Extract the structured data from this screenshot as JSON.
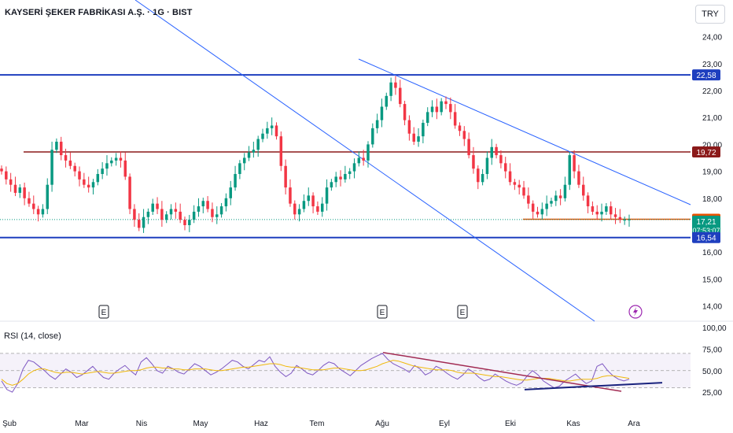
{
  "header": {
    "title": "KAYSERİ ŞEKER FABRİKASI A.Ş. · 1G · BIST",
    "currency": "TRY"
  },
  "rsi": {
    "label": "RSI (14, close)"
  },
  "colors": {
    "up": "#089981",
    "down": "#f23645",
    "blue_line": "#1e3fbf",
    "maroon_line": "#8b1a1a",
    "orange_line": "#e65100",
    "trend_line": "#2962ff",
    "rsi_line": "#7e57c2",
    "rsi_ma": "#f0b90b",
    "rsi_band": "#ede7f6"
  },
  "chart_data": [
    {
      "type": "candlestick",
      "title": "KAYSERİ ŞEKER FABRİKASI A.Ş. · 1G · BIST",
      "x": [
        "Şub",
        "Mar",
        "Nis",
        "May",
        "Haz",
        "Tem",
        "Ağu",
        "Eyl",
        "Eki",
        "Kas",
        "Ara"
      ],
      "y_ticks": [
        "24,00",
        "23,00",
        "22,00",
        "21,00",
        "20,00",
        "19,00",
        "18,00",
        "16,00",
        "15,00",
        "14,00"
      ],
      "ylim": [
        13.4,
        24.6
      ],
      "closes": [
        19.0,
        18.7,
        18.5,
        18.2,
        18.4,
        18.0,
        17.8,
        17.6,
        17.4,
        17.6,
        18.5,
        19.8,
        20.1,
        19.6,
        19.4,
        19.2,
        19.0,
        18.7,
        18.5,
        18.4,
        18.6,
        18.9,
        19.1,
        19.3,
        19.4,
        19.5,
        19.4,
        18.8,
        17.6,
        17.2,
        16.9,
        17.3,
        17.5,
        17.8,
        17.6,
        17.2,
        17.4,
        17.6,
        17.5,
        17.2,
        17.0,
        17.2,
        17.5,
        17.7,
        17.9,
        17.6,
        17.3,
        17.4,
        17.7,
        18.0,
        18.4,
        18.9,
        19.3,
        19.5,
        19.7,
        19.8,
        20.2,
        20.4,
        20.6,
        20.7,
        20.3,
        19.2,
        18.4,
        17.8,
        17.4,
        17.6,
        17.9,
        18.1,
        17.7,
        17.5,
        17.8,
        18.4,
        18.6,
        18.8,
        18.7,
        18.9,
        19.0,
        19.3,
        19.5,
        19.4,
        20.0,
        20.6,
        20.9,
        21.4,
        21.8,
        22.3,
        22.1,
        21.5,
        20.9,
        20.4,
        20.1,
        20.3,
        20.8,
        21.2,
        21.4,
        21.2,
        21.6,
        21.5,
        21.2,
        20.7,
        20.5,
        20.2,
        19.6,
        19.1,
        18.6,
        18.9,
        19.5,
        19.9,
        19.6,
        19.3,
        19.0,
        18.6,
        18.5,
        18.4,
        18.1,
        17.8,
        17.5,
        17.4,
        17.6,
        17.8,
        17.9,
        18.1,
        18.0,
        18.5,
        19.6,
        19.0,
        18.5,
        18.1,
        17.7,
        17.5,
        17.4,
        17.5,
        17.7,
        17.4,
        17.3,
        17.2,
        17.2,
        17.21
      ],
      "annotations": [
        "E",
        "E",
        "E"
      ],
      "price_labels": [
        {
          "value": "22,58",
          "kind": "blue"
        },
        {
          "value": "19,72",
          "kind": "maroon"
        },
        {
          "value": "17,22",
          "kind": "orange"
        },
        {
          "value": "17,21",
          "kind": "last",
          "countdown": "07:53:07"
        },
        {
          "value": "16,54",
          "kind": "blue"
        }
      ],
      "horizontal_lines": [
        22.58,
        19.72,
        17.22,
        16.54
      ]
    },
    {
      "type": "line",
      "title": "RSI (14, close)",
      "y_ticks": [
        "100,00",
        "75,00",
        "50,00",
        "25,00"
      ],
      "ylim": [
        18,
        100
      ],
      "bands": [
        30,
        50,
        70
      ],
      "series": [
        {
          "values": [
            38,
            28,
            25,
            35,
            52,
            62,
            60,
            55,
            50,
            44,
            40,
            46,
            52,
            48,
            42,
            45,
            50,
            55,
            48,
            42,
            40,
            47,
            52,
            56,
            50,
            45,
            60,
            65,
            58,
            50,
            47,
            55,
            52,
            48,
            46,
            52,
            58,
            55,
            50,
            45,
            48,
            52,
            57,
            62,
            60,
            55,
            52,
            57,
            62,
            60,
            66,
            55,
            48,
            43,
            47,
            56,
            52,
            47,
            45,
            50,
            56,
            60,
            58,
            52,
            48,
            44,
            50,
            56,
            60,
            64,
            67,
            70,
            63,
            58,
            55,
            52,
            48,
            56,
            52,
            45,
            48,
            55,
            52,
            47,
            43,
            40,
            45,
            52,
            48,
            42,
            38,
            40,
            46,
            42,
            38,
            35,
            33,
            36,
            44,
            50,
            45,
            38,
            34,
            30,
            32,
            38,
            42,
            46,
            40,
            35,
            38,
            55,
            58,
            50,
            44,
            40,
            38,
            40
          ]
        },
        {
          "values": [
            40,
            35,
            33,
            35,
            40,
            46,
            50,
            52,
            52,
            50,
            48,
            47,
            48,
            48,
            47,
            46,
            47,
            48,
            49,
            48,
            47,
            47,
            48,
            49,
            50,
            50,
            51,
            53,
            54,
            54,
            53,
            53,
            52,
            52,
            51,
            51,
            52,
            52,
            52,
            51,
            50,
            50,
            51,
            52,
            53,
            54,
            54,
            55,
            56,
            57,
            58,
            58,
            57,
            55,
            54,
            54,
            53,
            52,
            51,
            51,
            51,
            52,
            53,
            53,
            52,
            51,
            50,
            50,
            51,
            53,
            55,
            58,
            60,
            62,
            61,
            59,
            57,
            55,
            54,
            53,
            52,
            51,
            51,
            51,
            50,
            48,
            47,
            47,
            47,
            46,
            45,
            44,
            43,
            43,
            42,
            41,
            40,
            39,
            39,
            40,
            41,
            41,
            41,
            40,
            39,
            38,
            38,
            39,
            40,
            40,
            40,
            41,
            43,
            44,
            44,
            43,
            42,
            41
          ]
        }
      ]
    }
  ],
  "x_axis": [
    "Şub",
    "Mar",
    "Nis",
    "May",
    "Haz",
    "Tem",
    "Ağu",
    "Eyl",
    "Eki",
    "Kas",
    "Ara"
  ]
}
